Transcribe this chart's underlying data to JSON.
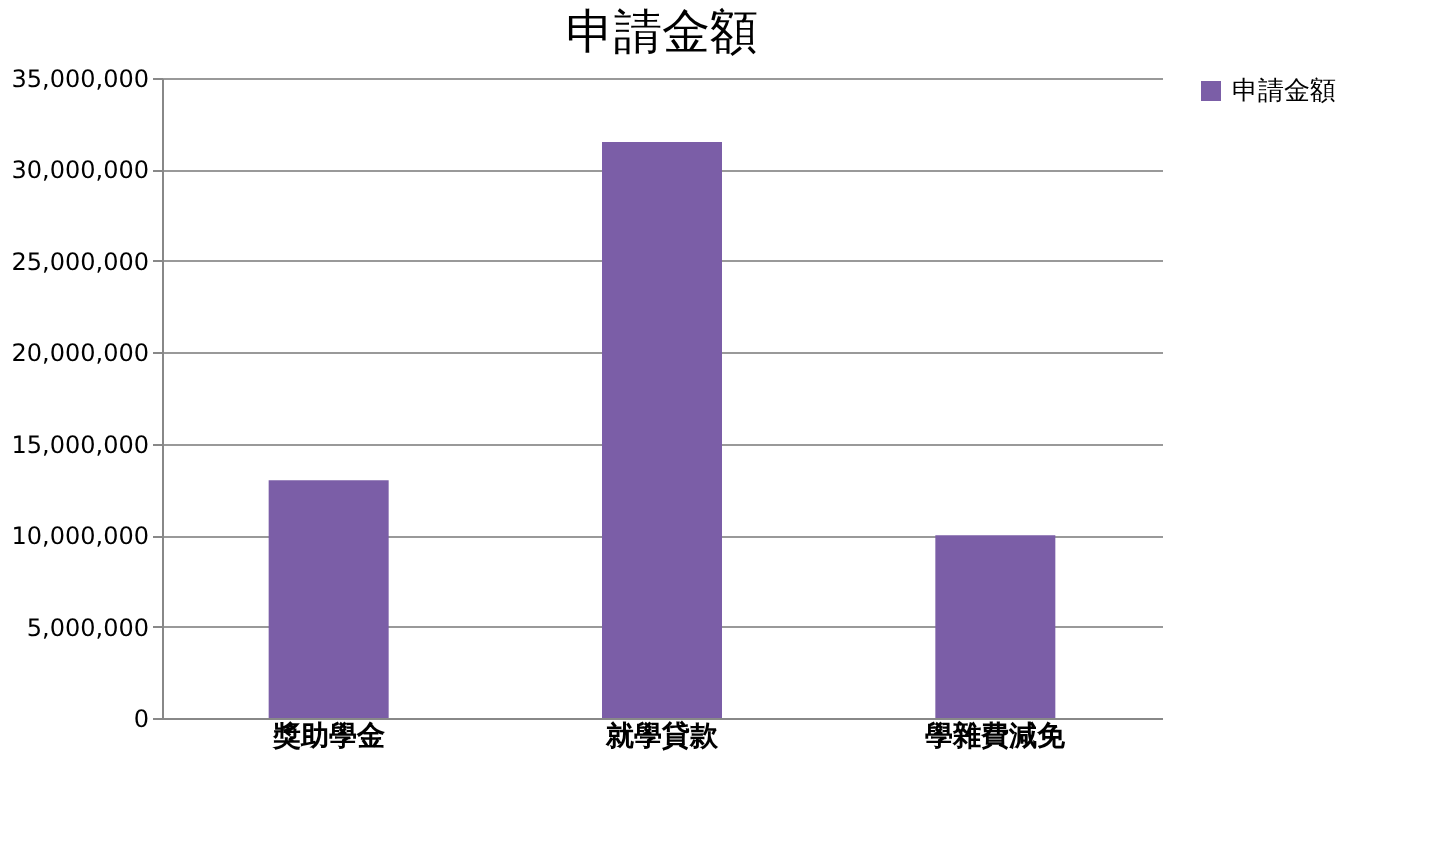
{
  "chart_data": {
    "type": "bar",
    "title": "申請金額",
    "categories": [
      "獎助學金",
      "就學貸款",
      "學雜費減免"
    ],
    "series": [
      {
        "name": "申請金額",
        "color": "#7b5ea7",
        "values": [
          13000000,
          31500000,
          10000000
        ]
      }
    ],
    "ylim": [
      0,
      35000000
    ],
    "yticks": [
      0,
      {
        "value": 5000000,
        "label": "5,000,000"
      },
      {
        "value": 10000000,
        "label": "10,000,000"
      },
      {
        "value": 15000000,
        "label": "15,000,000"
      },
      {
        "value": 20000000,
        "label": "20,000,000"
      },
      {
        "value": 25000000,
        "label": "25,000,000"
      },
      {
        "value": 30000000,
        "label": "30,000,000"
      },
      {
        "value": 35000000,
        "label": "35,000,000"
      }
    ],
    "grid": "y",
    "legend": "right"
  }
}
